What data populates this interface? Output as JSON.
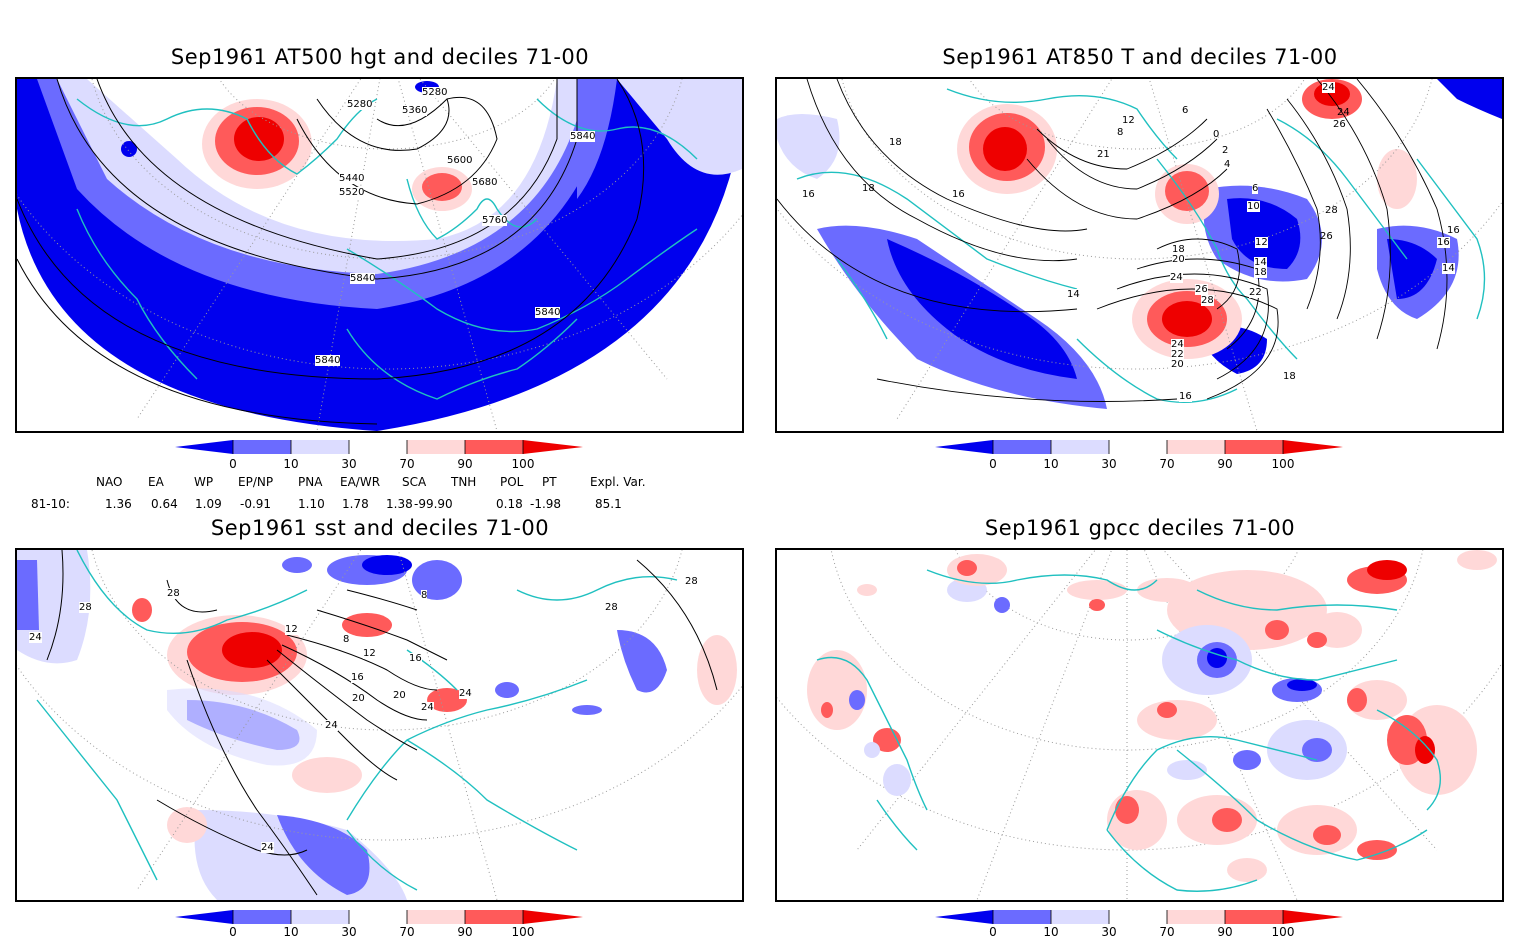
{
  "panels": {
    "top_left": {
      "title": "Sep1961 AT500 hgt and deciles 71-00"
    },
    "top_right": {
      "title": "Sep1961 AT850 T and deciles 71-00"
    },
    "bottom_left": {
      "title": "Sep1961 sst and deciles 71-00"
    },
    "bottom_right": {
      "title": "Sep1961 gpcc deciles 71-00"
    }
  },
  "colorbar": {
    "ticks": [
      "0",
      "10",
      "30",
      "70",
      "90",
      "100"
    ],
    "colors": [
      "#0000ee",
      "#6b6bff",
      "#dcdcff",
      "#ffffff",
      "#ffd8d8",
      "#ff5a5a",
      "#ee0000"
    ]
  },
  "indices": {
    "header": [
      "NAO",
      "EA",
      "WP",
      "EP/NP",
      "PNA",
      "EA/WR",
      "SCA",
      "TNH",
      "POL",
      "PT",
      "Expl. Var."
    ],
    "row_label": "81-10:",
    "values": [
      "1.36",
      "0.64",
      "1.09",
      "-0.91",
      "1.10",
      "1.78",
      "1.38",
      "-99.90",
      "0.18",
      "-1.98",
      "85.1"
    ]
  },
  "contour_labels": {
    "top_left": [
      "5280",
      "5280",
      "5360",
      "5840",
      "5600",
      "5440",
      "5520",
      "5680",
      "5760",
      "5840",
      "5840",
      "5840"
    ],
    "top_right": [
      "24",
      "24",
      "26",
      "6",
      "0",
      "2",
      "4",
      "18",
      "16",
      "18",
      "16",
      "21",
      "8",
      "12",
      "6",
      "10",
      "28",
      "26",
      "16",
      "12",
      "14",
      "18",
      "14",
      "18",
      "20",
      "24",
      "26",
      "28",
      "22",
      "14",
      "24",
      "22",
      "20",
      "18",
      "16",
      "16"
    ],
    "bottom_left": [
      "28",
      "28",
      "24",
      "12",
      "8",
      "12",
      "16",
      "20",
      "20",
      "24",
      "24",
      "24",
      "16",
      "8",
      "28",
      "28",
      "24"
    ]
  },
  "map_colors": {
    "land_outline": "#20c0c0",
    "contour": "#000000",
    "grid": "#9a9a9a"
  }
}
